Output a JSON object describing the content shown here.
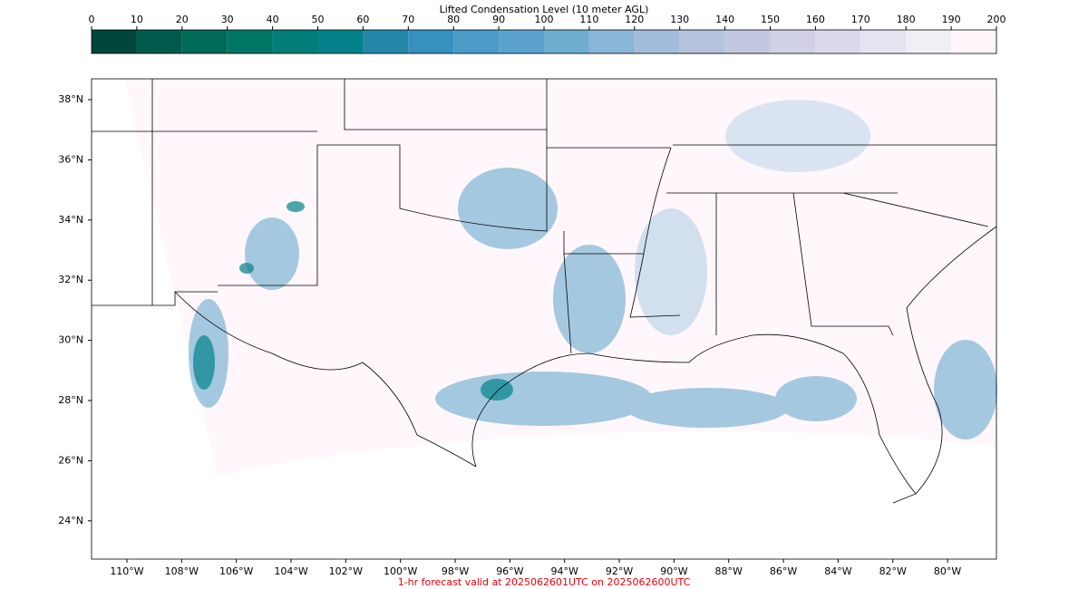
{
  "colorbar": {
    "title": "Lifted Condensation Level (10 meter AGL)",
    "lim": [
      0,
      200
    ],
    "ticks": [
      0,
      10,
      20,
      30,
      40,
      50,
      60,
      70,
      80,
      90,
      100,
      110,
      120,
      130,
      140,
      150,
      160,
      170,
      180,
      190,
      200
    ],
    "colors": [
      "#01463a",
      "#015b4c",
      "#016a56",
      "#017566",
      "#027d78",
      "#02818a",
      "#2587a8",
      "#3690c0",
      "#4a9bc8",
      "#5ba2cc",
      "#6fadd0",
      "#89b5d8",
      "#a4bcdb",
      "#b4c2de",
      "#c3c7e0",
      "#d0d1e6",
      "#dcd9eb",
      "#e6e2f0",
      "#f1eef6",
      "#fff7fb"
    ]
  },
  "lat_ticks": [
    {
      "value": 38,
      "label": "38°N"
    },
    {
      "value": 36,
      "label": "36°N"
    },
    {
      "value": 34,
      "label": "34°N"
    },
    {
      "value": 32,
      "label": "32°N"
    },
    {
      "value": 30,
      "label": "30°N"
    },
    {
      "value": 28,
      "label": "28°N"
    },
    {
      "value": 26,
      "label": "26°N"
    },
    {
      "value": 24,
      "label": "24°N"
    }
  ],
  "lon_ticks": [
    {
      "value": -110,
      "label": "110°W"
    },
    {
      "value": -108,
      "label": "108°W"
    },
    {
      "value": -106,
      "label": "106°W"
    },
    {
      "value": -104,
      "label": "104°W"
    },
    {
      "value": -102,
      "label": "102°W"
    },
    {
      "value": -100,
      "label": "100°W"
    },
    {
      "value": -98,
      "label": "98°W"
    },
    {
      "value": -96,
      "label": "96°W"
    },
    {
      "value": -94,
      "label": "94°W"
    },
    {
      "value": -92,
      "label": "92°W"
    },
    {
      "value": -90,
      "label": "90°W"
    },
    {
      "value": -88,
      "label": "88°W"
    },
    {
      "value": -86,
      "label": "86°W"
    },
    {
      "value": -84,
      "label": "84°W"
    },
    {
      "value": -82,
      "label": "82°W"
    },
    {
      "value": -80,
      "label": "80°W"
    }
  ],
  "footer": "1-hr forecast valid at 2025062601UTC on 2025062600UTC"
}
